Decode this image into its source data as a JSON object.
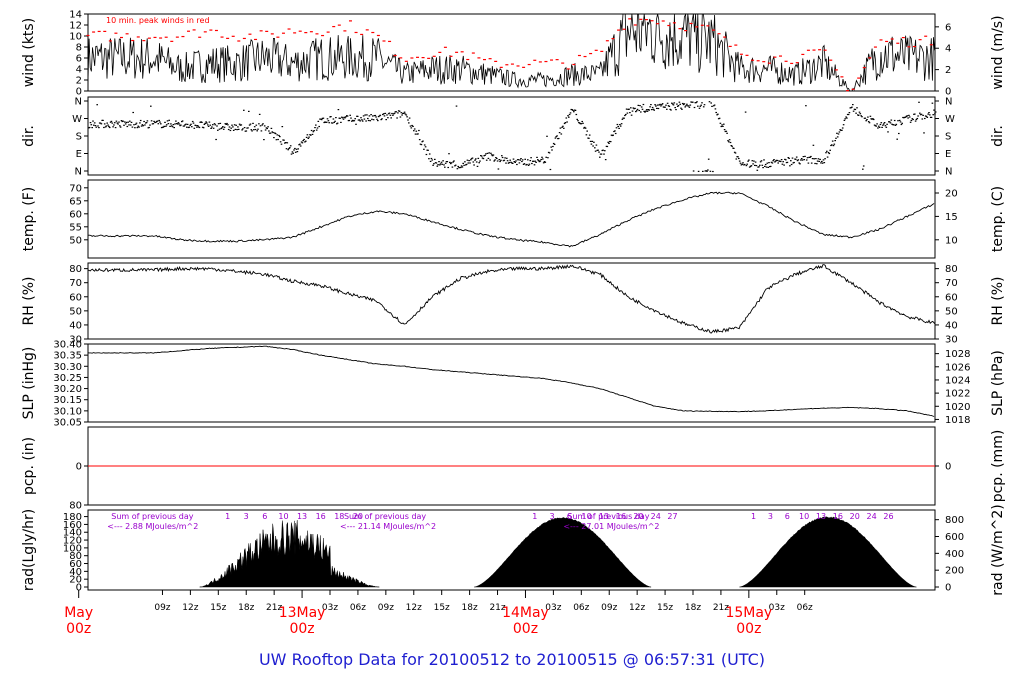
{
  "page": {
    "footer_title": "UW Rooftop Data for 20100512  to  20100515 @ 06:57:31  (UTC)"
  },
  "colors": {
    "data": "#000000",
    "peak": "#ff0000",
    "precip_line": "#ff0000",
    "date_labels": "#ff0000",
    "solar_annotations": "#9900cc",
    "footer": "#1f1fd0"
  },
  "chart_data": [
    {
      "type": "line",
      "id": "wind",
      "ylabel": "wind (kts)",
      "ylabel_right": "wind (m/s)",
      "annotation": "10 min. peak winds in red",
      "ylim": [
        0,
        14
      ],
      "yticks": [
        "0",
        "2",
        "4",
        "6",
        "8",
        "10",
        "12",
        "14"
      ],
      "yticks_right": [
        "0",
        "2",
        "4",
        "6"
      ],
      "x_hours": [
        0,
        3,
        6,
        9,
        12,
        15,
        18,
        21,
        24,
        27,
        30,
        33,
        36,
        39,
        42,
        45,
        48,
        51,
        54,
        57,
        60,
        63,
        66,
        69,
        72,
        75,
        78,
        81,
        84,
        87,
        90
      ],
      "series": [
        {
          "values": [
            6,
            4,
            5,
            5,
            6,
            5,
            6,
            6,
            6,
            3,
            4,
            4,
            3,
            2,
            2,
            3,
            3,
            11,
            11,
            10,
            9,
            4,
            4,
            3,
            5,
            0,
            7,
            6,
            6,
            8,
            2
          ]
        },
        {
          "values": [
            10,
            10,
            11,
            10,
            10,
            11,
            11,
            12,
            10,
            6,
            7,
            7,
            5,
            5,
            5,
            5,
            7,
            13,
            13,
            12,
            11,
            7,
            6,
            6,
            7,
            0,
            9,
            9,
            9,
            11,
            5
          ]
        }
      ]
    },
    {
      "type": "scatter",
      "id": "dir",
      "ylabel": "dir.",
      "ylabel_right": "dir.",
      "yticks": [
        "N",
        "E",
        "S",
        "W",
        "N"
      ],
      "x_hours": [
        0,
        3,
        6,
        9,
        12,
        15,
        18,
        21,
        24,
        27,
        30,
        33,
        36,
        39,
        42,
        45,
        48,
        51,
        54,
        57,
        60,
        63,
        66,
        69,
        72,
        75,
        78,
        81,
        84,
        87,
        90
      ],
      "values_deg": [
        245,
        245,
        235,
        225,
        230,
        100,
        260,
        270,
        275,
        300,
        45,
        30,
        80,
        45,
        60,
        320,
        80,
        320,
        330,
        340,
        350,
        40,
        40,
        60,
        60,
        330,
        230,
        270,
        300,
        310,
        90
      ]
    },
    {
      "type": "line",
      "id": "temp",
      "ylabel": "temp. (F)",
      "ylabel_right": "temp. (C)",
      "ylim": [
        43,
        73
      ],
      "yticks": [
        "50",
        "55",
        "60",
        "65",
        "70"
      ],
      "yticks_right": [
        "10",
        "15",
        "20"
      ],
      "x_hours": [
        0,
        3,
        6,
        9,
        12,
        15,
        18,
        21,
        24,
        27,
        30,
        33,
        36,
        39,
        42,
        45,
        48,
        51,
        54,
        57,
        60,
        63,
        66,
        69,
        72,
        75,
        78,
        81,
        84,
        87,
        90
      ],
      "series": [
        {
          "values": [
            51.5,
            50,
            49.5,
            49.5,
            50,
            51,
            55,
            59,
            61,
            60,
            57,
            54,
            51.5,
            50,
            49,
            47.5,
            52,
            57.5,
            62,
            65.5,
            68,
            68,
            63,
            57,
            52,
            51,
            54,
            59,
            64,
            69,
            72
          ]
        }
      ]
    },
    {
      "type": "line",
      "id": "rh",
      "ylabel": "RH (%)",
      "ylabel_right": "RH (%)",
      "ylim": [
        30,
        84
      ],
      "yticks": [
        "30",
        "40",
        "50",
        "60",
        "70",
        "80"
      ],
      "yticks_right": [
        "30",
        "40",
        "50",
        "60",
        "70",
        "80"
      ],
      "x_hours": [
        0,
        3,
        6,
        9,
        12,
        15,
        18,
        21,
        24,
        27,
        30,
        33,
        36,
        39,
        42,
        45,
        48,
        51,
        54,
        57,
        60,
        63,
        66,
        69,
        72,
        75,
        78,
        81,
        84,
        87,
        90
      ],
      "series": [
        {
          "values": [
            79,
            80,
            80,
            78,
            76,
            71,
            68,
            62,
            57,
            40,
            60,
            73,
            78,
            80,
            80,
            82,
            76,
            60,
            50,
            41,
            35,
            38,
            66,
            76,
            82,
            70,
            56,
            46,
            41,
            50,
            62
          ]
        }
      ]
    },
    {
      "type": "line",
      "id": "slp",
      "ylabel": "SLP (inHg)",
      "ylabel_right": "SLP (hPa)",
      "ylim": [
        30.05,
        30.4
      ],
      "yticks": [
        "30.05",
        "30.10",
        "30.15",
        "30.20",
        "30.25",
        "30.30",
        "30.35",
        "30.40"
      ],
      "yticks_right": [
        "1018",
        "1020",
        "1022",
        "1024",
        "1026",
        "1028"
      ],
      "x_hours": [
        0,
        3,
        6,
        9,
        12,
        15,
        18,
        21,
        24,
        27,
        30,
        33,
        36,
        39,
        42,
        45,
        48,
        51,
        54,
        57,
        60,
        63,
        66,
        69,
        72,
        75,
        78,
        81,
        84,
        87,
        90
      ],
      "series": [
        {
          "values": [
            30.36,
            30.37,
            30.38,
            30.385,
            30.39,
            30.375,
            30.35,
            30.33,
            30.31,
            30.3,
            30.285,
            30.275,
            30.265,
            30.255,
            30.245,
            30.225,
            30.2,
            30.16,
            30.12,
            30.1,
            30.098,
            30.097,
            30.1,
            30.107,
            30.112,
            30.115,
            30.11,
            30.1,
            30.075,
            30.08,
            30.095
          ]
        }
      ]
    },
    {
      "type": "line",
      "id": "pcp",
      "ylabel": "pcp. (in)",
      "ylabel_right": "pcp. (mm)",
      "ylim": [
        0,
        0.08
      ],
      "yticks_left": {
        "values": [
          0,
          0.08
        ],
        "labels": [
          "0",
          "80"
        ]
      },
      "yticks_right": [
        "0"
      ],
      "series": [
        {
          "values": [
            0,
            0
          ]
        }
      ]
    },
    {
      "type": "area",
      "id": "rad",
      "ylabel": "rad(Lgly/hr)",
      "ylabel_right": "rad (W/m^2)",
      "ylim": [
        0,
        820
      ],
      "yticks": [
        "0",
        "20",
        "40",
        "60",
        "80",
        "100",
        "120",
        "140",
        "160",
        "180"
      ],
      "yticks_right": [
        "0",
        "200",
        "400",
        "600",
        "800"
      ],
      "days": [
        {
          "start_h": 5,
          "end_h": 24.3,
          "peak_w": 810
        },
        {
          "start_h": 34.5,
          "end_h": 53.5,
          "peak_w": 830
        },
        {
          "start_h": 63,
          "end_h": 82,
          "peak_w": 840
        }
      ],
      "annotations": [
        {
          "line1": "Sum of previous day",
          "line2": "<--- 2.88 MJoules/m^2"
        },
        {
          "line1": "Sum of previous day",
          "line2": "<--- 21.14 MJoules/m^2"
        },
        {
          "line1": "Sum of previous day",
          "line2": "<--- 27.01 MJoules/m^2"
        }
      ],
      "hour_labels": [
        [
          "1",
          "3",
          "6",
          "10",
          "13",
          "16",
          "18",
          "20"
        ],
        [
          "1",
          "3",
          "6",
          "10",
          "13",
          "16",
          "20",
          "24"
        ],
        [
          "27"
        ],
        [
          "1",
          "3",
          "6",
          "10",
          "13",
          "16",
          "20",
          "24",
          "26"
        ]
      ]
    }
  ],
  "x_axis": {
    "hour_ticks": [
      {
        "h": 1,
        "label": "09z"
      },
      {
        "h": 4,
        "label": "12z"
      },
      {
        "h": 7,
        "label": "15z"
      },
      {
        "h": 10,
        "label": "18z"
      },
      {
        "h": 13,
        "label": "21z"
      },
      {
        "h": 19,
        "label": "03z"
      },
      {
        "h": 22,
        "label": "06z"
      },
      {
        "h": 25,
        "label": "09z"
      },
      {
        "h": 28,
        "label": "12z"
      },
      {
        "h": 31,
        "label": "15z"
      },
      {
        "h": 34,
        "label": "18z"
      },
      {
        "h": 37,
        "label": "21z"
      },
      {
        "h": 43,
        "label": "03z"
      },
      {
        "h": 46,
        "label": "06z"
      },
      {
        "h": 49,
        "label": "09z"
      },
      {
        "h": 52,
        "label": "12z"
      },
      {
        "h": 55,
        "label": "15z"
      },
      {
        "h": 58,
        "label": "18z"
      },
      {
        "h": 61,
        "label": "21z"
      },
      {
        "h": 67,
        "label": "03z"
      },
      {
        "h": 70,
        "label": "06z"
      }
    ],
    "date_ticks": [
      {
        "h": -8,
        "line1": "May",
        "line2": "00z"
      },
      {
        "h": 16,
        "line1": "13May",
        "line2": "00z"
      },
      {
        "h": 40,
        "line1": "14May",
        "line2": "00z"
      },
      {
        "h": 64,
        "line1": "15May",
        "line2": "00z"
      }
    ]
  }
}
